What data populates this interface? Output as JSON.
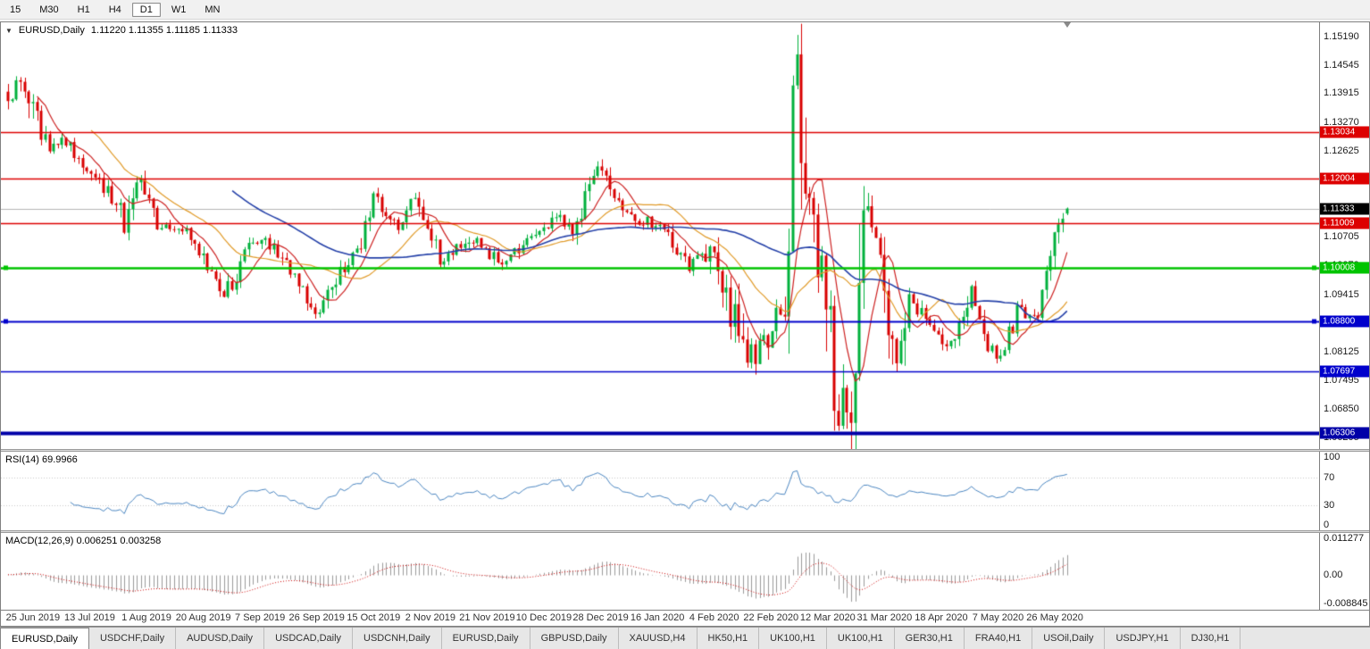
{
  "toolbar": {
    "timeframes": [
      "15",
      "M30",
      "H1",
      "H4",
      "D1",
      "W1",
      "MN"
    ],
    "active_timeframe": "D1"
  },
  "chart": {
    "symbol_title": "EURUSD,Daily",
    "ohlc": "1.11220 1.11355 1.11185 1.11333",
    "current_price": "1.11333",
    "scale": {
      "max": 1.155,
      "min": 1.0595
    },
    "price_axis_ticks": [
      "1.15190",
      "1.14545",
      "1.13915",
      "1.13270",
      "1.12625",
      "1.11980",
      "1.11335",
      "1.10705",
      "1.10070",
      "1.09415",
      "1.08770",
      "1.08125",
      "1.07495",
      "1.06850",
      "1.06205"
    ],
    "current_price_tag": {
      "label": "1.11333",
      "color": "#000000"
    },
    "current_price_line_color": "#b4b4b4",
    "hlines": [
      {
        "price": 1.13034,
        "label": "1.13034",
        "color": "#dd0000",
        "width": 1.6,
        "handles": false
      },
      {
        "price": 1.12004,
        "label": "1.12004",
        "color": "#dd0000",
        "width": 1.6,
        "handles": false
      },
      {
        "price": 1.11009,
        "label": "1.11009",
        "color": "#dd0000",
        "width": 1.6,
        "handles": false
      },
      {
        "price": 1.10008,
        "label": "1.10008",
        "color": "#00c400",
        "width": 2.5,
        "handles": true
      },
      {
        "price": 1.088,
        "label": "1.08800",
        "color": "#0000cc",
        "width": 2.0,
        "handles": true
      },
      {
        "price": 1.07697,
        "label": "1.07697",
        "color": "#0000cc",
        "width": 1.6,
        "handles": false
      },
      {
        "price": 1.06306,
        "label": "1.06306",
        "color": "#0000a8",
        "width": 4.0,
        "handles": false
      }
    ],
    "chart_data": {
      "type": "candlestick",
      "symbol": "EURUSD",
      "timeframe": "Daily",
      "n_bars": 256,
      "last_bar": {
        "open": 1.1122,
        "high": 1.11355,
        "low": 1.11185,
        "close": 1.11333
      },
      "price_waypoints": [
        [
          0,
          1.139
        ],
        [
          3,
          1.1415
        ],
        [
          8,
          1.13
        ],
        [
          10,
          1.127
        ],
        [
          14,
          1.1285
        ],
        [
          20,
          1.1205
        ],
        [
          26,
          1.115
        ],
        [
          28,
          1.1085
        ],
        [
          31,
          1.12
        ],
        [
          36,
          1.1095
        ],
        [
          42,
          1.1085
        ],
        [
          46,
          1.104
        ],
        [
          52,
          1.093
        ],
        [
          58,
          1.105
        ],
        [
          62,
          1.107
        ],
        [
          68,
          1.099
        ],
        [
          74,
          1.0895
        ],
        [
          80,
          1.0985
        ],
        [
          84,
          1.103
        ],
        [
          88,
          1.1155
        ],
        [
          94,
          1.1085
        ],
        [
          98,
          1.1155
        ],
        [
          104,
          1.102
        ],
        [
          112,
          1.1065
        ],
        [
          118,
          1.1015
        ],
        [
          126,
          1.106
        ],
        [
          132,
          1.1115
        ],
        [
          136,
          1.1085
        ],
        [
          142,
          1.123
        ],
        [
          146,
          1.116
        ],
        [
          152,
          1.111
        ],
        [
          158,
          1.109
        ],
        [
          164,
          1.1005
        ],
        [
          168,
          1.104
        ],
        [
          173,
          1.094
        ],
        [
          178,
          1.079
        ],
        [
          184,
          1.0855
        ],
        [
          187,
          1.096
        ],
        [
          190,
          1.147
        ],
        [
          193,
          1.114
        ],
        [
          196,
          1.099
        ],
        [
          200,
          1.065
        ],
        [
          203,
          1.075
        ],
        [
          206,
          1.113
        ],
        [
          210,
          1.103
        ],
        [
          214,
          1.0805
        ],
        [
          217,
          1.095
        ],
        [
          221,
          1.087
        ],
        [
          226,
          1.0825
        ],
        [
          230,
          1.0885
        ],
        [
          232,
          1.0965
        ],
        [
          236,
          1.0835
        ],
        [
          239,
          1.08
        ],
        [
          243,
          1.0905
        ],
        [
          247,
          1.0885
        ],
        [
          250,
          1.0975
        ],
        [
          252,
          1.106
        ],
        [
          254,
          1.1125
        ],
        [
          255,
          1.1133
        ]
      ],
      "extreme_bars": [
        {
          "i": 190,
          "high": 1.1495
        },
        {
          "i": 200,
          "low": 1.0636
        },
        {
          "i": 142,
          "high": 1.1239
        },
        {
          "i": 178,
          "low": 1.0778
        }
      ],
      "moving_averages": [
        {
          "period": 8,
          "color": "#cc2020",
          "width": 1.2
        },
        {
          "period": 21,
          "color": "#e09a28",
          "width": 1.2
        },
        {
          "period": 55,
          "color": "#2440a8",
          "width": 1.6
        }
      ]
    }
  },
  "rsi_panel": {
    "label": "RSI(14) 69.9966",
    "ticks": [
      {
        "v": 100,
        "label": "100"
      },
      {
        "v": 70,
        "label": "70"
      },
      {
        "v": 30,
        "label": "30"
      },
      {
        "v": 0,
        "label": "0"
      }
    ],
    "levels": [
      70,
      30
    ],
    "period": 14,
    "line_color": "#4a85c0",
    "level_color": "#c8c8c8"
  },
  "macd_panel": {
    "label": "MACD(12,26,9) 0.006251 0.003258",
    "params": [
      12,
      26,
      9
    ],
    "values": [
      0.006251,
      0.003258
    ],
    "ticks": [
      {
        "v": 0.011277,
        "label": "0.011277"
      },
      {
        "v": 0,
        "label": "0.00"
      },
      {
        "v": -0.008845,
        "label": "-0.008845"
      }
    ],
    "scale": {
      "max": 0.0125,
      "min": -0.0105
    },
    "histogram_color": "#9a9a9a",
    "signal_color": "#cc0000"
  },
  "time_axis": {
    "labels": [
      "25 Jun 2019",
      "13 Jul 2019",
      "1 Aug 2019",
      "20 Aug 2019",
      "7 Sep 2019",
      "26 Sep 2019",
      "15 Oct 2019",
      "2 Nov 2019",
      "21 Nov 2019",
      "10 Dec 2019",
      "28 Dec 2019",
      "16 Jan 2020",
      "4 Feb 2020",
      "22 Feb 2020",
      "12 Mar 2020",
      "31 Mar 2020",
      "18 Apr 2020",
      "7 May 2020",
      "26 May 2020"
    ],
    "label_offset_bars": 6,
    "bars_per_label": 13.67
  },
  "tabs": [
    {
      "label": "EURUSD,Daily",
      "active": true
    },
    {
      "label": "USDCHF,Daily",
      "active": false
    },
    {
      "label": "AUDUSD,Daily",
      "active": false
    },
    {
      "label": "USDCAD,Daily",
      "active": false
    },
    {
      "label": "USDCNH,Daily",
      "active": false
    },
    {
      "label": "EURUSD,Daily",
      "active": false
    },
    {
      "label": "GBPUSD,Daily",
      "active": false
    },
    {
      "label": "XAUUSD,H4",
      "active": false
    },
    {
      "label": "HK50,H1",
      "active": false
    },
    {
      "label": "UK100,H1",
      "active": false
    },
    {
      "label": "UK100,H1",
      "active": false
    },
    {
      "label": "GER30,H1",
      "active": false
    },
    {
      "label": "FRA40,H1",
      "active": false
    },
    {
      "label": "USOil,Daily",
      "active": false
    },
    {
      "label": "USDJPY,H1",
      "active": false
    },
    {
      "label": "DJ30,H1",
      "active": false
    }
  ],
  "colors": {
    "up": "#00b03c",
    "down": "#d80000"
  }
}
